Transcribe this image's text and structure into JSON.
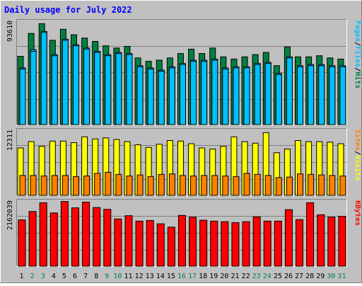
{
  "title": "Daily usage for July 2022",
  "colors": {
    "background": "#c0c0c0",
    "title": "#0000ff",
    "hits": "#008040",
    "files": "#00c0ff",
    "pages": "#00c0ff",
    "visits": "#ffff00",
    "sites": "#ff8000",
    "kbytes": "#ff0000",
    "weekend_label": "#00805a",
    "weekday_label": "#000000"
  },
  "chart_data": [
    {
      "type": "bar",
      "panel": "top",
      "ylabel_max": "93610",
      "legend": [
        "Pages",
        "/",
        "Files",
        "/",
        "Hits"
      ],
      "categories": [
        "1",
        "2",
        "3",
        "4",
        "5",
        "6",
        "7",
        "8",
        "9",
        "10",
        "11",
        "12",
        "13",
        "14",
        "15",
        "16",
        "17",
        "18",
        "19",
        "20",
        "21",
        "22",
        "23",
        "24",
        "25",
        "26",
        "27",
        "28",
        "29",
        "30",
        "31"
      ],
      "weekend_days": [
        "2",
        "3",
        "9",
        "10",
        "16",
        "17",
        "23",
        "24",
        "30",
        "31"
      ],
      "ylim": [
        0,
        93610
      ],
      "series": [
        {
          "name": "Hits",
          "values": [
            62500,
            83200,
            92000,
            77000,
            87000,
            82000,
            79000,
            76000,
            72000,
            70000,
            71500,
            61000,
            58000,
            59000,
            61000,
            65000,
            69000,
            65000,
            70000,
            62000,
            60000,
            62000,
            64000,
            66000,
            54000,
            71000,
            62000,
            62000,
            63000,
            61000,
            60000
          ]
        },
        {
          "name": "Files",
          "values": [
            52000,
            68500,
            85000,
            64000,
            78000,
            73000,
            70000,
            67000,
            64000,
            66000,
            65000,
            54000,
            52000,
            50000,
            53000,
            56000,
            59000,
            59000,
            60000,
            52000,
            53000,
            53000,
            56000,
            57000,
            47000,
            62000,
            54000,
            55000,
            55000,
            54000,
            54000
          ]
        },
        {
          "name": "Pages",
          "values": [
            51000,
            67000,
            84000,
            63000,
            77000,
            72000,
            69000,
            66000,
            63000,
            65000,
            64000,
            53000,
            51000,
            49000,
            52000,
            55000,
            58000,
            58000,
            59000,
            51000,
            52000,
            52000,
            55000,
            56000,
            46000,
            61000,
            53000,
            54000,
            54000,
            53000,
            53000
          ]
        }
      ]
    },
    {
      "type": "bar",
      "panel": "middle",
      "ylabel_max": "12311",
      "legend": [
        "Sites",
        "/",
        "Visits"
      ],
      "categories": [
        "1",
        "2",
        "3",
        "4",
        "5",
        "6",
        "7",
        "8",
        "9",
        "10",
        "11",
        "12",
        "13",
        "14",
        "15",
        "16",
        "17",
        "18",
        "19",
        "20",
        "21",
        "22",
        "23",
        "24",
        "25",
        "26",
        "27",
        "28",
        "29",
        "30",
        "31"
      ],
      "ylim": [
        0,
        12311
      ],
      "series": [
        {
          "name": "Visits",
          "values": [
            9100,
            10300,
            9400,
            10400,
            10400,
            10100,
            11200,
            10800,
            11000,
            10700,
            10300,
            9700,
            9200,
            9800,
            10500,
            10400,
            9900,
            9100,
            8900,
            9400,
            11200,
            10300,
            10000,
            12000,
            8200,
            8900,
            10500,
            10300,
            10300,
            10200,
            9900
          ]
        },
        {
          "name": "Sites",
          "values": [
            3900,
            3900,
            3800,
            3900,
            3900,
            3700,
            3800,
            4300,
            4500,
            4100,
            3800,
            4000,
            3700,
            4100,
            4200,
            3900,
            3800,
            3900,
            3900,
            3800,
            3700,
            4300,
            4100,
            3900,
            3500,
            3600,
            4200,
            4100,
            4000,
            3900,
            3800
          ]
        }
      ]
    },
    {
      "type": "bar",
      "panel": "bottom",
      "ylabel_max": "2162039",
      "legend": [
        "KBytes"
      ],
      "categories": [
        "1",
        "2",
        "3",
        "4",
        "5",
        "6",
        "7",
        "8",
        "9",
        "10",
        "11",
        "12",
        "13",
        "14",
        "15",
        "16",
        "17",
        "18",
        "19",
        "20",
        "21",
        "22",
        "23",
        "24",
        "25",
        "26",
        "27",
        "28",
        "29",
        "30",
        "31"
      ],
      "ylim": [
        0,
        2162039
      ],
      "series": [
        {
          "name": "KBytes",
          "values": [
            1560000,
            1840000,
            2130000,
            1790000,
            2170000,
            1960000,
            2150000,
            1970000,
            1910000,
            1590000,
            1700000,
            1520000,
            1540000,
            1430000,
            1320000,
            1710000,
            1650000,
            1550000,
            1520000,
            1500000,
            1470000,
            1500000,
            1660000,
            1520000,
            1520000,
            1900000,
            1570000,
            2130000,
            1730000,
            1650000,
            1680000
          ]
        }
      ]
    }
  ]
}
